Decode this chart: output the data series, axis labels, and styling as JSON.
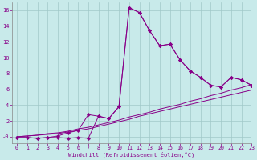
{
  "xlabel": "Windchill (Refroidissement éolien,°C)",
  "background_color": "#c8eaea",
  "grid_color": "#a0c8c8",
  "line_color": "#880088",
  "x_values": [
    0,
    1,
    2,
    3,
    4,
    5,
    6,
    7,
    8,
    9,
    10,
    11,
    12,
    13,
    14,
    15,
    16,
    17,
    18,
    19,
    20,
    21,
    22,
    23
  ],
  "series1": [
    -0.1,
    -0.1,
    -0.2,
    -0.1,
    -0.1,
    -0.2,
    -0.1,
    -0.2,
    2.6,
    2.3,
    3.8,
    16.3,
    15.7,
    13.4,
    11.5,
    11.7,
    9.7,
    8.3,
    7.5,
    6.5,
    6.3,
    7.5,
    7.2,
    6.5
  ],
  "series2": [
    -0.1,
    -0.1,
    -0.2,
    -0.1,
    0.1,
    0.5,
    0.8,
    2.8,
    2.6,
    2.3,
    3.8,
    16.3,
    15.7,
    13.4,
    11.5,
    11.7,
    9.7,
    8.3,
    7.5,
    6.5,
    6.3,
    7.5,
    7.2,
    6.5
  ],
  "series3": [
    0.0,
    0.1,
    0.2,
    0.3,
    0.4,
    0.6,
    0.8,
    1.0,
    1.3,
    1.6,
    1.9,
    2.2,
    2.6,
    2.9,
    3.2,
    3.5,
    3.8,
    4.1,
    4.4,
    4.7,
    5.0,
    5.3,
    5.6,
    5.9
  ],
  "series4": [
    0.0,
    0.1,
    0.2,
    0.4,
    0.5,
    0.7,
    1.0,
    1.2,
    1.5,
    1.8,
    2.1,
    2.5,
    2.8,
    3.1,
    3.5,
    3.8,
    4.1,
    4.5,
    4.8,
    5.2,
    5.5,
    5.9,
    6.2,
    6.6
  ],
  "ylim": [
    -0.8,
    17
  ],
  "xlim": [
    -0.5,
    23
  ],
  "ytick_vals": [
    0,
    2,
    4,
    6,
    8,
    10,
    12,
    14,
    16
  ],
  "ytick_labels": [
    "-0",
    "2",
    "4",
    "6",
    "8",
    "10",
    "12",
    "14",
    "16"
  ],
  "xticks": [
    0,
    1,
    2,
    3,
    4,
    5,
    6,
    7,
    8,
    9,
    10,
    11,
    12,
    13,
    14,
    15,
    16,
    17,
    18,
    19,
    20,
    21,
    22,
    23
  ]
}
